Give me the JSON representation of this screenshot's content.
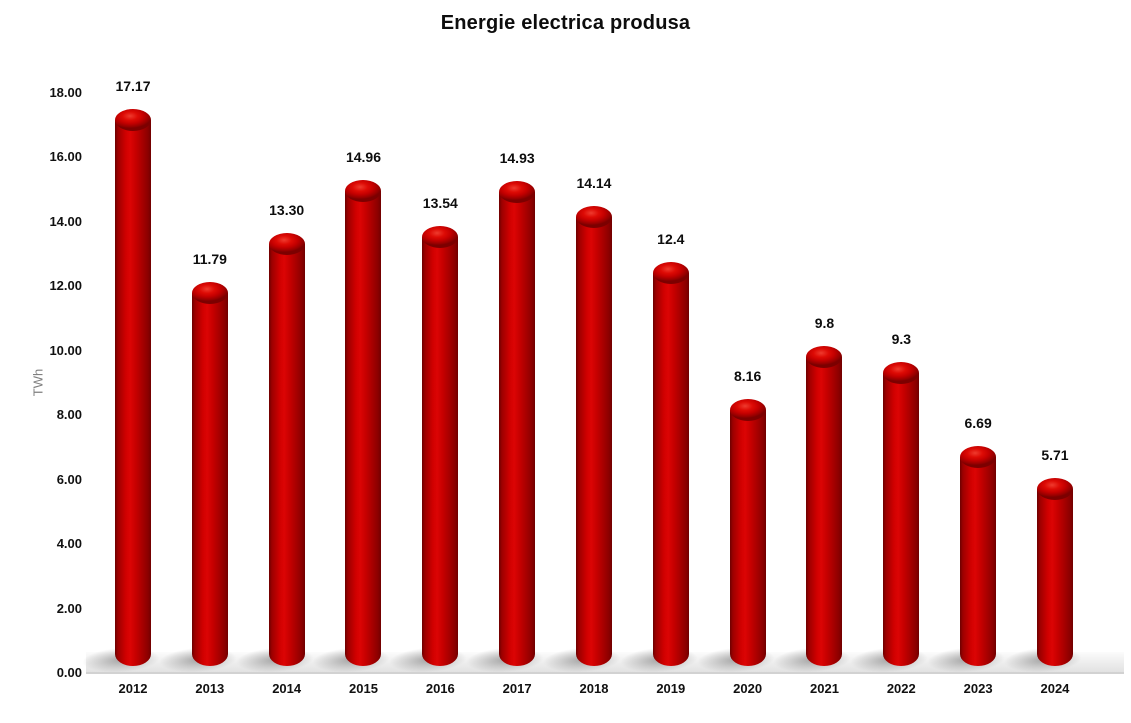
{
  "chart_data": {
    "type": "bar",
    "style": "3d-cylinder",
    "title": "Energie electrica produsa",
    "xlabel": "",
    "ylabel": "TWh",
    "categories": [
      "2012",
      "2013",
      "2014",
      "2015",
      "2016",
      "2017",
      "2018",
      "2019",
      "2020",
      "2021",
      "2022",
      "2023",
      "2024"
    ],
    "values": [
      17.17,
      11.79,
      13.3,
      14.96,
      13.54,
      14.93,
      14.14,
      12.4,
      8.16,
      9.8,
      9.3,
      6.69,
      5.71
    ],
    "value_labels": [
      "17.17",
      "11.79",
      "13.30",
      "14.96",
      "13.54",
      "14.93",
      "14.14",
      "12.4",
      "8.16",
      "9.8",
      "9.3",
      "6.69",
      "5.71"
    ],
    "ytick_labels": [
      "0.00",
      "2.00",
      "4.00",
      "6.00",
      "8.00",
      "10.00",
      "12.00",
      "14.00",
      "16.00",
      "18.00"
    ],
    "ytick_values": [
      0,
      2,
      4,
      6,
      8,
      10,
      12,
      14,
      16,
      18
    ],
    "ylim": [
      0,
      18
    ],
    "grid": false,
    "legend": false,
    "colors": {
      "bar_main": "#c00000",
      "bar_highlight": "#dc0404",
      "bar_edge_dark": "#6d0000",
      "axis_line": "#d2d2d2",
      "tick_text": "#111111",
      "axis_title_text": "#808080",
      "background": "#ffffff"
    }
  }
}
